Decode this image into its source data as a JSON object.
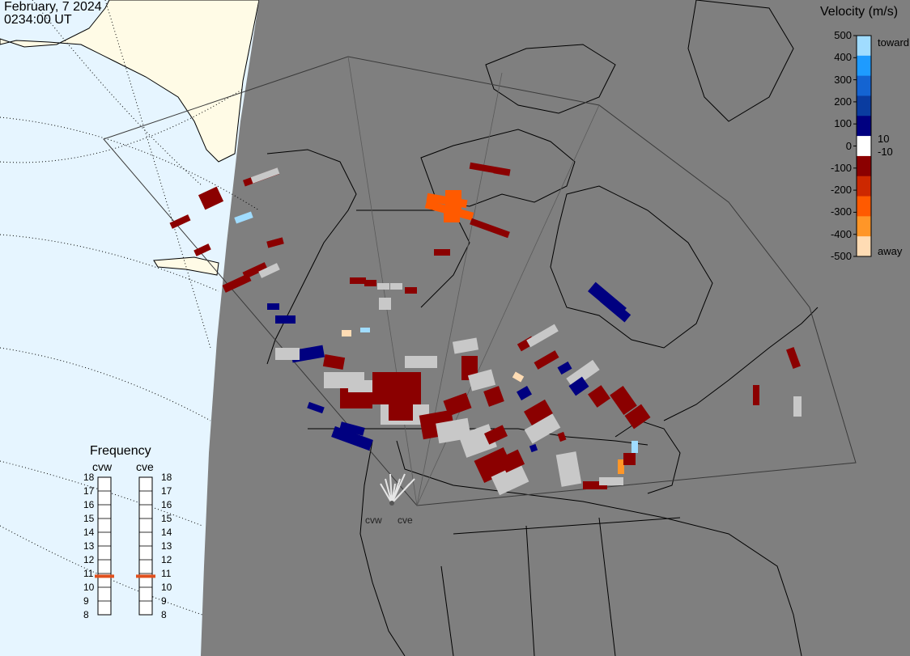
{
  "header": {
    "date": "February, 7 2024",
    "time": "0234:00 UT"
  },
  "colorbar": {
    "title": "Velocity (m/s)",
    "ticks": [
      "500",
      "400",
      "300",
      "200",
      "100",
      "0",
      "-100",
      "-200",
      "-300",
      "-400",
      "-500"
    ],
    "inner_pos": "10",
    "inner_neg": "-10",
    "toward_label": "toward",
    "away_label": "away",
    "colors": [
      "#ffdcb4",
      "#ff9628",
      "#ff5a00",
      "#cd2800",
      "#8b0000",
      "#ffffff",
      "#000080",
      "#0a3ca0",
      "#1464d2",
      "#1e9bff",
      "#a0dcff"
    ]
  },
  "frequency": {
    "title": "Frequency",
    "radars": [
      {
        "name": "cvw",
        "value": 10.8
      },
      {
        "name": "cve",
        "value": 10.8
      }
    ],
    "ticks": [
      "18",
      "17",
      "16",
      "15",
      "14",
      "13",
      "12",
      "11",
      "10",
      "9",
      "8"
    ],
    "marker_color": "#e0501e"
  },
  "radar_sites": [
    "cvw",
    "cve"
  ],
  "colors": {
    "night": "#7f7f7f",
    "day_ocean": "#e6f5ff",
    "day_land": "#fffbe6",
    "gnd_scatter": "#c8c8c8",
    "coastline": "#000000"
  }
}
